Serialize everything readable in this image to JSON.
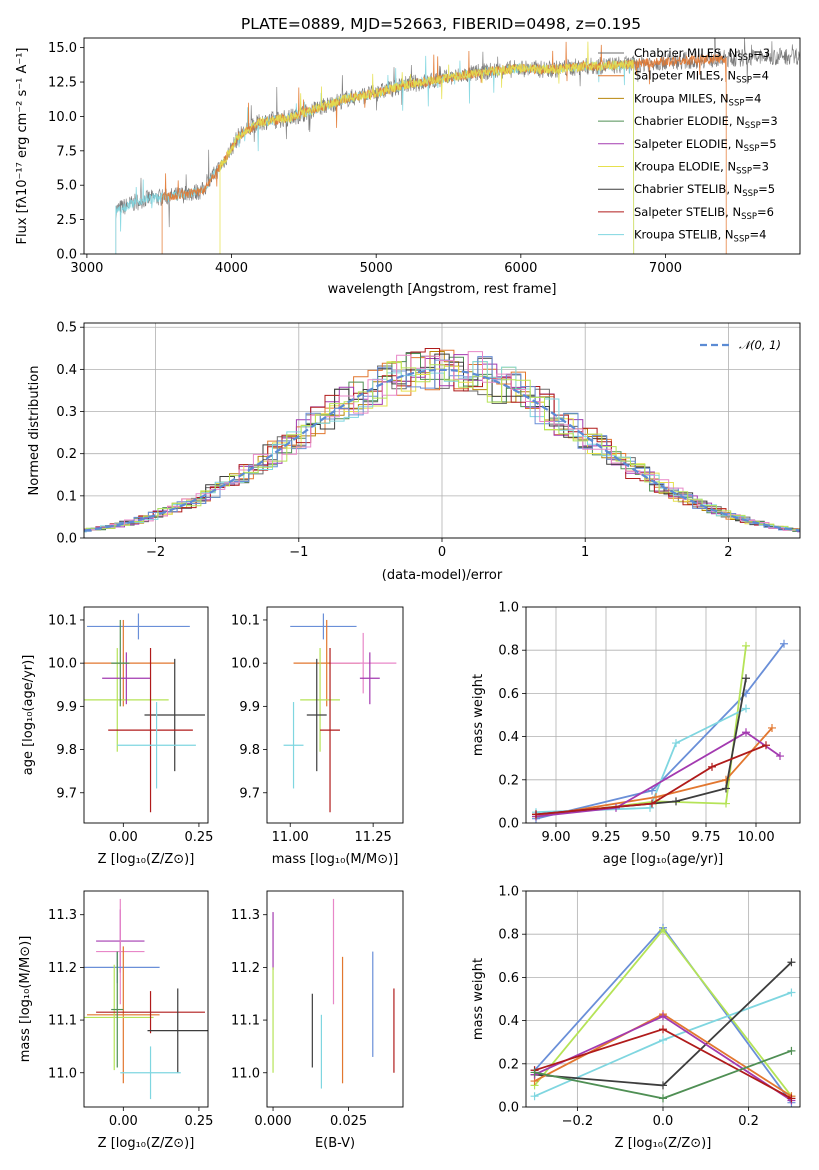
{
  "title": "PLATE=0889, MJD=52663, FIBERID=0498, z=0.195",
  "colors": {
    "Chabrier MILES": "#6b6b6b",
    "Salpeter MILES": "#e2772f",
    "Kroupa MILES": "#b8860b",
    "Chabrier ELODIE": "#4f8f54",
    "Salpeter ELODIE": "#a33ab0",
    "Kroupa ELODIE": "#e6e04d",
    "Chabrier STELIB": "#3d3d3d",
    "Salpeter STELIB": "#b01b1b",
    "Kroupa STELIB": "#7fd6e0",
    "blue": "#6a8fd8",
    "pink": "#e887c8",
    "lime": "#b5e357",
    "gauss": "#5b8bd4"
  },
  "chart_data": [
    {
      "id": "spectrum",
      "type": "line",
      "xlabel": "wavelength [Angstrom, rest frame]",
      "ylabel": "Flux [fλ10⁻¹⁷ erg cm⁻² s⁻¹ A⁻¹]",
      "xlim": [
        2980,
        7930
      ],
      "ylim": [
        0,
        15.7
      ],
      "xticks": [
        "3000",
        "4000",
        "5000",
        "6000",
        "7000"
      ],
      "yticks": [
        "0.0",
        "2.5",
        "5.0",
        "7.5",
        "10.0",
        "12.5",
        "15.0"
      ],
      "continuum": {
        "x": [
          3200,
          3400,
          3600,
          3800,
          3950,
          4050,
          4200,
          4400,
          4600,
          4800,
          5000,
          5200,
          5400,
          5600,
          5800,
          6000,
          6200,
          6400,
          6600,
          6800,
          7000,
          7200,
          7400,
          7900
        ],
        "y": [
          3.2,
          4.0,
          4.2,
          4.6,
          6.8,
          8.6,
          9.6,
          9.9,
          10.6,
          11.3,
          11.7,
          12.3,
          12.6,
          13.0,
          13.3,
          13.5,
          13.4,
          13.6,
          13.7,
          13.8,
          14.0,
          14.1,
          14.2,
          14.4
        ]
      },
      "cutoffs": [
        3200,
        3520,
        3920,
        6780,
        7420
      ],
      "legend": [
        {
          "label": "Chabrier MILES",
          "nssp": "3"
        },
        {
          "label": "Salpeter MILES",
          "nssp": "4"
        },
        {
          "label": "Kroupa MILES",
          "nssp": "4"
        },
        {
          "label": "Chabrier ELODIE",
          "nssp": "3"
        },
        {
          "label": "Salpeter ELODIE",
          "nssp": "5"
        },
        {
          "label": "Kroupa ELODIE",
          "nssp": "3"
        },
        {
          "label": "Chabrier STELIB",
          "nssp": "5"
        },
        {
          "label": "Salpeter STELIB",
          "nssp": "6"
        },
        {
          "label": "Kroupa STELIB",
          "nssp": "4"
        }
      ],
      "legend_placement": "upper-right"
    },
    {
      "id": "residuals",
      "type": "histogram",
      "xlabel": "(data-model)/error",
      "ylabel": "Normed distribution",
      "xlim": [
        -2.5,
        2.5
      ],
      "ylim": [
        0,
        0.51
      ],
      "xticks": [
        "−2",
        "−1",
        "0",
        "1",
        "2"
      ],
      "yticks": [
        "0.0",
        "0.1",
        "0.2",
        "0.3",
        "0.4",
        "0.5"
      ],
      "legend": {
        "label": "𝒩(0, 1)",
        "placement": "top-right"
      },
      "bin_width": 0.1,
      "grid": true
    },
    {
      "id": "age-vs-Z",
      "type": "errorbar",
      "xlabel": "Z [log₁₀(Z/Z⊙)]",
      "ylabel": "age  [log₁₀(age/yr)]",
      "xlim": [
        -0.13,
        0.28
      ],
      "ylim": [
        9.63,
        10.13
      ],
      "xticks": [
        "0.00",
        "0.25"
      ],
      "yticks": [
        "9.7",
        "9.8",
        "9.9",
        "10.0",
        "10.1"
      ],
      "points": [
        {
          "c": "blue",
          "x": 0.05,
          "y": 10.085,
          "xe": 0.17,
          "ye": 0.03
        },
        {
          "c": "Salpeter MILES",
          "x": 0.0,
          "y": 10.0,
          "xe": 0.17,
          "ye": 0.1
        },
        {
          "c": "lime",
          "x": -0.02,
          "y": 9.915,
          "xe": 0.17,
          "ye": 0.12
        },
        {
          "c": "Salpeter ELODIE",
          "x": 0.01,
          "y": 9.965,
          "xe": 0.08,
          "ye": 0.06
        },
        {
          "c": "Chabrier STELIB",
          "x": 0.17,
          "y": 9.88,
          "xe": 0.1,
          "ye": 0.13
        },
        {
          "c": "Salpeter STELIB",
          "x": 0.09,
          "y": 9.845,
          "xe": 0.14,
          "ye": 0.19
        },
        {
          "c": "Kroupa STELIB",
          "x": 0.11,
          "y": 9.81,
          "xe": 0.13,
          "ye": 0.1
        },
        {
          "c": "Chabrier ELODIE",
          "x": -0.01,
          "y": 10.0,
          "xe": 0.03,
          "ye": 0.1
        }
      ]
    },
    {
      "id": "age-vs-mass",
      "type": "errorbar",
      "xlabel": "mass [log₁₀(M/M⊙)]",
      "xlim": [
        10.93,
        11.34
      ],
      "ylim": [
        9.63,
        10.13
      ],
      "xticks": [
        "11.00",
        "11.25"
      ],
      "yticks": [
        "9.7",
        "9.8",
        "9.9",
        "10.0",
        "10.1"
      ],
      "points": [
        {
          "c": "blue",
          "x": 11.1,
          "y": 10.085,
          "xe": 0.1,
          "ye": 0.03
        },
        {
          "c": "Salpeter MILES",
          "x": 11.11,
          "y": 10.0,
          "xe": 0.1,
          "ye": 0.1
        },
        {
          "c": "pink",
          "x": 11.22,
          "y": 10.0,
          "xe": 0.1,
          "ye": 0.07
        },
        {
          "c": "Salpeter ELODIE",
          "x": 11.24,
          "y": 9.965,
          "xe": 0.03,
          "ye": 0.06
        },
        {
          "c": "lime",
          "x": 11.09,
          "y": 9.915,
          "xe": 0.06,
          "ye": 0.12
        },
        {
          "c": "Chabrier STELIB",
          "x": 11.08,
          "y": 9.88,
          "xe": 0.03,
          "ye": 0.13
        },
        {
          "c": "Salpeter STELIB",
          "x": 11.12,
          "y": 9.845,
          "xe": 0.03,
          "ye": 0.19
        },
        {
          "c": "Kroupa STELIB",
          "x": 11.01,
          "y": 9.81,
          "xe": 0.03,
          "ye": 0.1
        }
      ]
    },
    {
      "id": "massweight-vs-age",
      "type": "line",
      "xlabel": "age  [log₁₀(age/yr)]",
      "ylabel": "mass weight",
      "xlim": [
        8.85,
        10.22
      ],
      "ylim": [
        0,
        1.0
      ],
      "xticks": [
        "9.00",
        "9.25",
        "9.50",
        "9.75",
        "10.00"
      ],
      "yticks": [
        "0.0",
        "0.2",
        "0.4",
        "0.6",
        "0.8",
        "1.0"
      ],
      "series": [
        {
          "c": "blue",
          "x": [
            8.9,
            9.48,
            9.95,
            10.14
          ],
          "y": [
            0.02,
            0.15,
            0.6,
            0.83
          ]
        },
        {
          "c": "lime",
          "x": [
            8.9,
            9.5,
            9.85,
            9.95
          ],
          "y": [
            0.03,
            0.1,
            0.09,
            0.82
          ]
        },
        {
          "c": "Kroupa STELIB",
          "x": [
            8.9,
            9.47,
            9.6,
            9.95
          ],
          "y": [
            0.05,
            0.07,
            0.37,
            0.53
          ]
        },
        {
          "c": "Salpeter MILES",
          "x": [
            8.9,
            9.5,
            9.85,
            10.08
          ],
          "y": [
            0.03,
            0.12,
            0.2,
            0.44
          ]
        },
        {
          "c": "Salpeter ELODIE",
          "x": [
            8.9,
            9.3,
            9.95,
            10.12
          ],
          "y": [
            0.03,
            0.07,
            0.42,
            0.31
          ]
        },
        {
          "c": "Chabrier STELIB",
          "x": [
            8.9,
            9.6,
            9.85,
            9.95
          ],
          "y": [
            0.04,
            0.1,
            0.16,
            0.67
          ]
        },
        {
          "c": "Salpeter STELIB",
          "x": [
            8.9,
            9.48,
            9.78,
            10.05
          ],
          "y": [
            0.04,
            0.09,
            0.26,
            0.36
          ]
        }
      ],
      "grid": true
    },
    {
      "id": "mass-vs-Z",
      "type": "errorbar",
      "xlabel": "Z [log₁₀(Z/Z⊙)]",
      "ylabel": "mass [log₁₀(M/M⊙)]",
      "xlim": [
        -0.13,
        0.28
      ],
      "ylim": [
        10.935,
        11.345
      ],
      "xticks": [
        "0.00",
        "0.25"
      ],
      "yticks": [
        "11.0",
        "11.1",
        "11.2",
        "11.3"
      ],
      "points": [
        {
          "c": "Salpeter ELODIE",
          "x": -0.01,
          "y": 11.25,
          "xe": 0.08,
          "ye": 0.06
        },
        {
          "c": "pink",
          "x": -0.01,
          "y": 11.23,
          "xe": 0.08,
          "ye": 0.1
        },
        {
          "c": "blue",
          "x": -0.02,
          "y": 11.2,
          "xe": 0.14,
          "ye": 0.03
        },
        {
          "c": "Salpeter MILES",
          "x": 0.0,
          "y": 11.11,
          "xe": 0.12,
          "ye": 0.13
        },
        {
          "c": "lime",
          "x": -0.03,
          "y": 11.105,
          "xe": 0.13,
          "ye": 0.1
        },
        {
          "c": "Salpeter STELIB",
          "x": 0.09,
          "y": 11.115,
          "xe": 0.18,
          "ye": 0.04
        },
        {
          "c": "Chabrier STELIB",
          "x": 0.18,
          "y": 11.08,
          "xe": 0.1,
          "ye": 0.08
        },
        {
          "c": "Kroupa STELIB",
          "x": 0.09,
          "y": 11.0,
          "xe": 0.1,
          "ye": 0.05
        },
        {
          "c": "Chabrier ELODIE",
          "x": -0.02,
          "y": 11.12,
          "xe": 0.02,
          "ye": 0.11
        }
      ]
    },
    {
      "id": "mass-vs-ebv",
      "type": "errorbar",
      "xlabel": "E(B-V)",
      "xlim": [
        -0.002,
        0.043
      ],
      "ylim": [
        10.935,
        11.345
      ],
      "xticks": [
        "0.000",
        "0.025"
      ],
      "yticks": [
        "11.0",
        "11.1",
        "11.2",
        "11.3"
      ],
      "points": [
        {
          "c": "Salpeter ELODIE",
          "x": 0.0,
          "y": 11.25,
          "ye": 0.055
        },
        {
          "c": "lime",
          "x": 0.0,
          "y": 11.1,
          "ye": 0.1
        },
        {
          "c": "Chabrier STELIB",
          "x": 0.013,
          "y": 11.08,
          "ye": 0.07
        },
        {
          "c": "Kroupa STELIB",
          "x": 0.016,
          "y": 11.04,
          "ye": 0.07
        },
        {
          "c": "pink",
          "x": 0.02,
          "y": 11.23,
          "ye": 0.1
        },
        {
          "c": "Salpeter MILES",
          "x": 0.023,
          "y": 11.1,
          "ye": 0.12
        },
        {
          "c": "blue",
          "x": 0.033,
          "y": 11.13,
          "ye": 0.1
        },
        {
          "c": "Salpeter STELIB",
          "x": 0.04,
          "y": 11.08,
          "ye": 0.08
        }
      ]
    },
    {
      "id": "massweight-vs-Z",
      "type": "line",
      "xlabel": "Z [log₁₀(Z/Z⊙)]",
      "ylabel": "mass weight",
      "xlim": [
        -0.32,
        0.32
      ],
      "ylim": [
        0,
        1.0
      ],
      "xticks": [
        "−0.2",
        "0.0",
        "0.2"
      ],
      "yticks": [
        "0.0",
        "0.2",
        "0.4",
        "0.6",
        "0.8",
        "1.0"
      ],
      "series": [
        {
          "c": "blue",
          "x": [
            -0.3,
            0.0,
            0.3
          ],
          "y": [
            0.17,
            0.83,
            0.02
          ]
        },
        {
          "c": "lime",
          "x": [
            -0.3,
            0.0,
            0.3
          ],
          "y": [
            0.1,
            0.82,
            0.05
          ]
        },
        {
          "c": "Kroupa STELIB",
          "x": [
            -0.3,
            0.0,
            0.3
          ],
          "y": [
            0.05,
            0.31,
            0.53
          ]
        },
        {
          "c": "Chabrier STELIB",
          "x": [
            -0.3,
            0.0,
            0.3
          ],
          "y": [
            0.15,
            0.1,
            0.67
          ]
        },
        {
          "c": "Salpeter MILES",
          "x": [
            -0.3,
            0.0,
            0.3
          ],
          "y": [
            0.12,
            0.43,
            0.05
          ]
        },
        {
          "c": "Salpeter ELODIE",
          "x": [
            -0.3,
            0.0,
            0.3
          ],
          "y": [
            0.15,
            0.42,
            0.03
          ]
        },
        {
          "c": "Salpeter STELIB",
          "x": [
            -0.3,
            0.0,
            0.3
          ],
          "y": [
            0.17,
            0.36,
            0.04
          ]
        },
        {
          "c": "Chabrier ELODIE",
          "x": [
            -0.3,
            0.0,
            0.3
          ],
          "y": [
            0.16,
            0.04,
            0.26
          ]
        }
      ],
      "grid": true
    }
  ]
}
